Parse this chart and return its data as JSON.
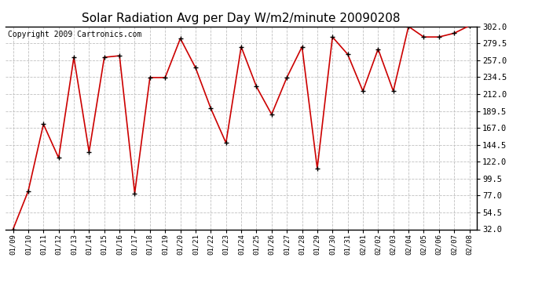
{
  "title": "Solar Radiation Avg per Day W/m2/minute 20090208",
  "copyright": "Copyright 2009 Cartronics.com",
  "dates": [
    "01/09",
    "01/10",
    "01/11",
    "01/12",
    "01/13",
    "01/14",
    "01/15",
    "01/16",
    "01/17",
    "01/18",
    "01/19",
    "01/20",
    "01/21",
    "01/22",
    "01/23",
    "01/24",
    "01/25",
    "01/26",
    "01/27",
    "01/28",
    "01/29",
    "01/30",
    "01/31",
    "02/01",
    "02/02",
    "02/03",
    "02/04",
    "02/05",
    "02/06",
    "02/07",
    "02/08"
  ],
  "values": [
    32,
    83,
    172,
    127,
    261,
    135,
    261,
    263,
    80,
    234,
    234,
    286,
    247,
    193,
    147,
    275,
    222,
    185,
    234,
    275,
    113,
    288,
    265,
    216,
    272,
    216,
    302,
    288,
    288,
    293,
    303
  ],
  "ylim": [
    32,
    302
  ],
  "yticks": [
    32.0,
    54.5,
    77.0,
    99.5,
    122.0,
    144.5,
    167.0,
    189.5,
    212.0,
    234.5,
    257.0,
    279.5,
    302.0
  ],
  "line_color": "#cc0000",
  "marker_color": "#000000",
  "bg_color": "#ffffff",
  "grid_color": "#c0c0c0",
  "title_fontsize": 11,
  "copyright_fontsize": 7
}
